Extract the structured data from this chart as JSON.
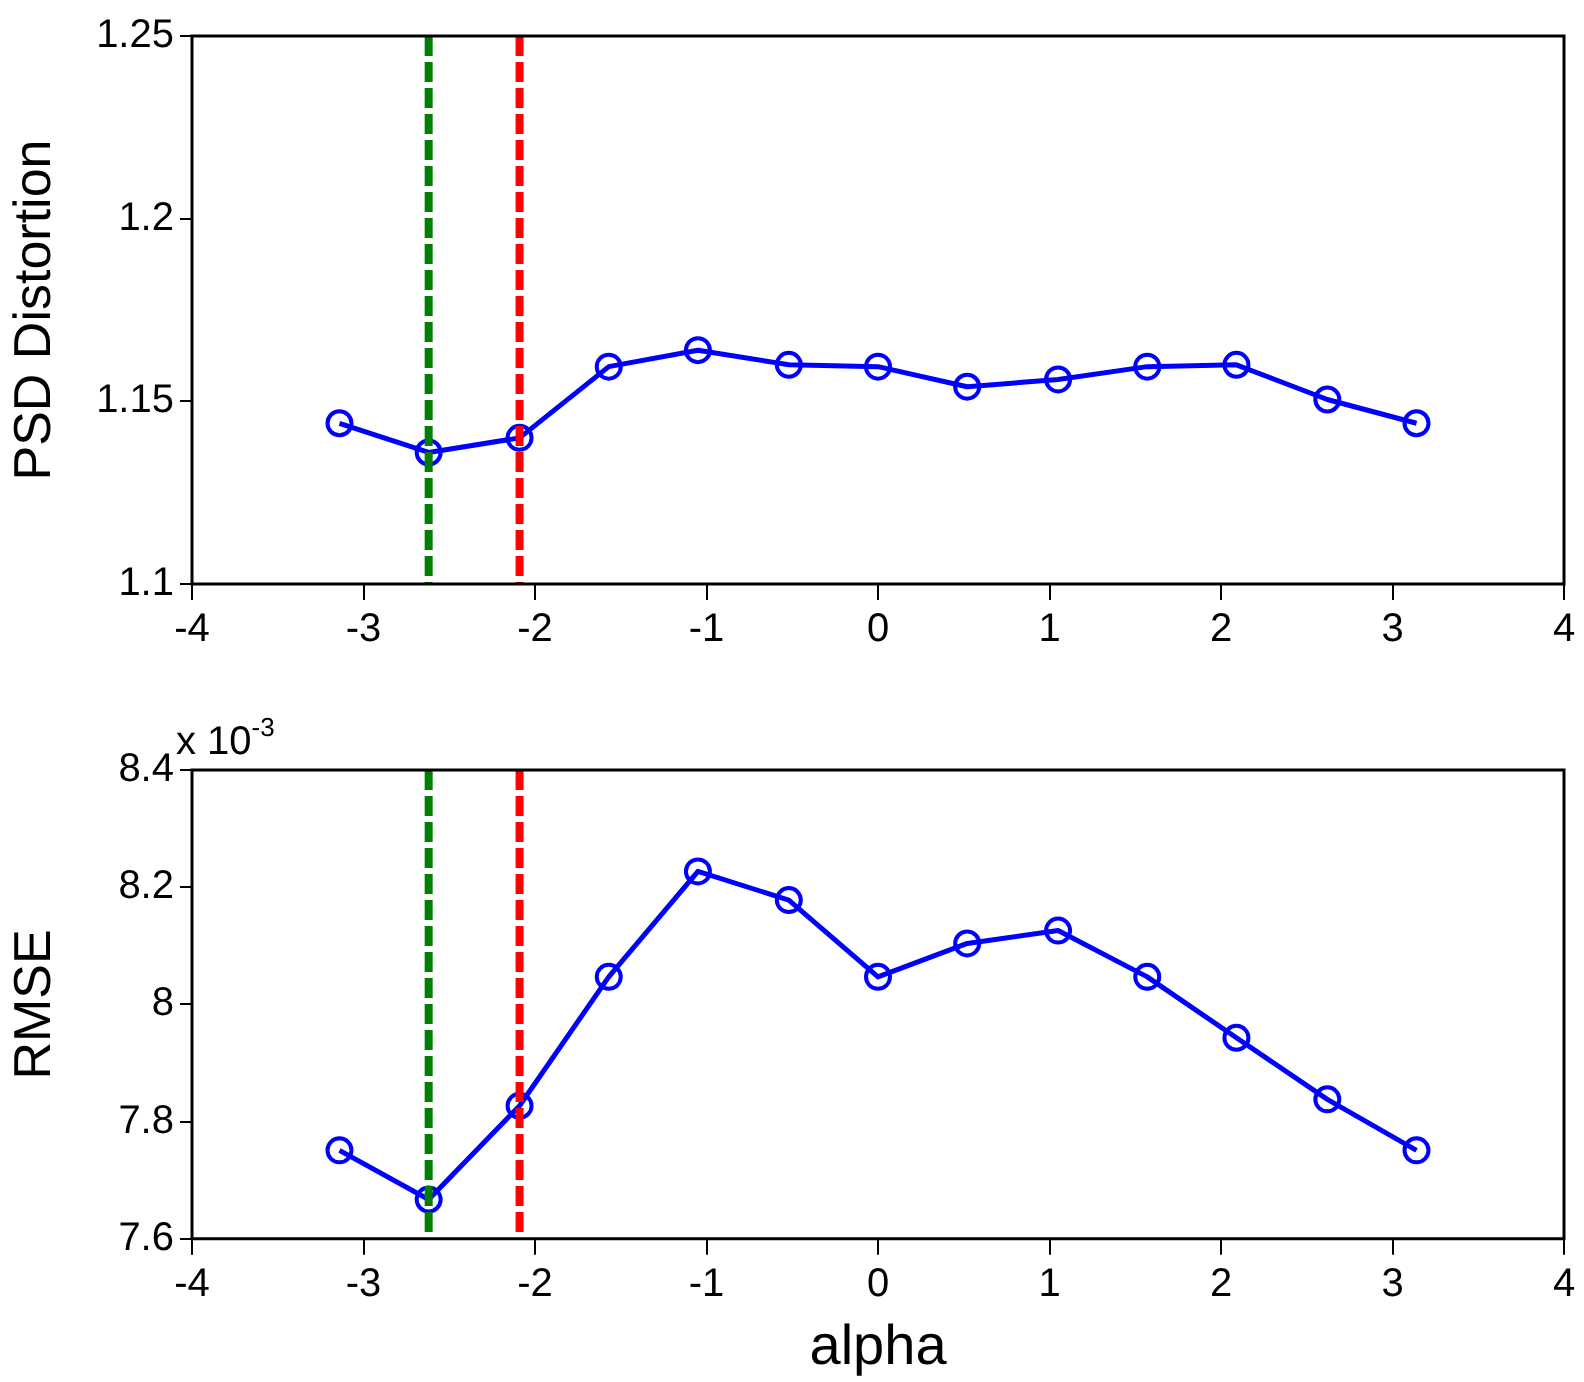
{
  "chart_data": [
    {
      "type": "line",
      "ylabel": "PSD Distortion",
      "x": [
        -3.14,
        -2.62,
        -2.09,
        -1.57,
        -1.05,
        -0.52,
        0,
        0.52,
        1.05,
        1.57,
        2.09,
        2.62,
        3.14
      ],
      "series": [
        {
          "color": "#0000ff",
          "values": [
            1.144,
            1.136,
            1.14,
            1.1595,
            1.164,
            1.16,
            1.1595,
            1.154,
            1.156,
            1.1595,
            1.16,
            1.1505,
            1.144
          ]
        }
      ],
      "xlim": [
        -4,
        4
      ],
      "xticks": [
        -4,
        -3,
        -2,
        -1,
        0,
        1,
        2,
        3,
        4
      ],
      "ylim": [
        1.1,
        1.25
      ],
      "yticks": [
        1.1,
        1.15,
        1.2,
        1.25
      ],
      "marker": "circle",
      "line_style": "solid",
      "ref_lines": [
        {
          "axis": "x",
          "value": -2.62,
          "color": "#007f00",
          "line_style": "dashed"
        },
        {
          "axis": "x",
          "value": -2.09,
          "color": "#ff0000",
          "line_style": "dashed"
        }
      ]
    },
    {
      "type": "line",
      "ylabel": "RMSE",
      "xlabel": "alpha",
      "annotations": [
        "x 10$^{-3}$"
      ],
      "x": [
        -3.14,
        -2.62,
        -2.09,
        -1.57,
        -1.05,
        -0.52,
        0,
        0.52,
        1.05,
        1.57,
        2.09,
        2.62,
        3.14
      ],
      "series": [
        {
          "color": "#0000ff",
          "values": [
            7.751,
            7.667,
            7.827,
            8.047,
            8.227,
            8.178,
            8.047,
            8.104,
            8.126,
            8.047,
            7.943,
            7.838,
            7.751
          ]
        }
      ],
      "xlim": [
        -4,
        4
      ],
      "xticks": [
        -4,
        -3,
        -2,
        -1,
        0,
        1,
        2,
        3,
        4
      ],
      "ylim": [
        7.6,
        8.4
      ],
      "yticks": [
        7.6,
        7.8,
        8,
        8.2,
        8.4
      ],
      "marker": "circle",
      "line_style": "solid",
      "ref_lines": [
        {
          "axis": "x",
          "value": -2.62,
          "color": "#007f00",
          "line_style": "dashed"
        },
        {
          "axis": "x",
          "value": -2.09,
          "color": "#ff0000",
          "line_style": "dashed"
        }
      ]
    }
  ]
}
